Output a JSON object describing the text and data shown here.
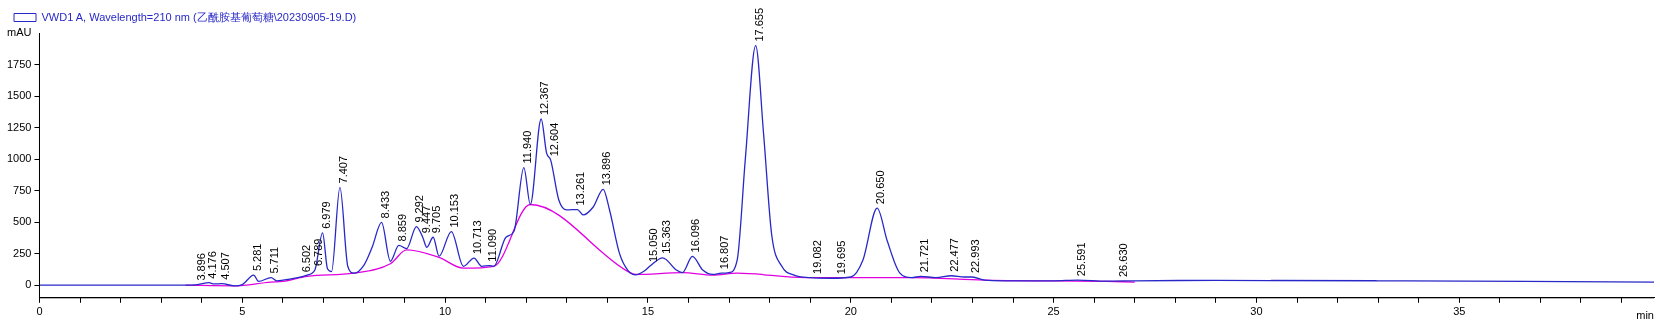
{
  "chart_data": {
    "type": "line",
    "xlabel": "min",
    "ylabel": "mAU",
    "legend": "top left",
    "grid": false,
    "marker": "none",
    "line_style": "solid",
    "xlim": [
      0,
      39.8
    ],
    "ylim": [
      -100,
      2000
    ],
    "xticks": [
      0,
      {
        "value": 1,
        "label": null
      },
      {
        "value": 2,
        "label": null
      },
      {
        "value": 3,
        "label": null
      },
      {
        "value": 4,
        "label": null
      },
      5,
      {
        "value": 6,
        "label": null
      },
      {
        "value": 7,
        "label": null
      },
      {
        "value": 8,
        "label": null
      },
      {
        "value": 9,
        "label": null
      },
      10,
      {
        "value": 11,
        "label": null
      },
      {
        "value": 12,
        "label": null
      },
      {
        "value": 13,
        "label": null
      },
      {
        "value": 14,
        "label": null
      },
      15,
      {
        "value": 16,
        "label": null
      },
      {
        "value": 17,
        "label": null
      },
      {
        "value": 18,
        "label": null
      },
      {
        "value": 19,
        "label": null
      },
      20,
      {
        "value": 21,
        "label": null
      },
      {
        "value": 22,
        "label": null
      },
      {
        "value": 23,
        "label": null
      },
      {
        "value": 24,
        "label": null
      },
      25,
      {
        "value": 26,
        "label": null
      },
      {
        "value": 27,
        "label": null
      },
      {
        "value": 28,
        "label": null
      },
      {
        "value": 29,
        "label": null
      },
      30,
      {
        "value": 31,
        "label": null
      },
      {
        "value": 32,
        "label": null
      },
      {
        "value": 33,
        "label": null
      },
      {
        "value": 34,
        "label": null
      },
      35,
      {
        "value": 36,
        "label": null
      },
      {
        "value": 37,
        "label": null
      },
      {
        "value": 38,
        "label": null
      },
      {
        "value": 39,
        "label": null
      }
    ],
    "yticks": [
      0,
      250,
      500,
      750,
      1000,
      1250,
      1500,
      1750
    ],
    "series": [
      {
        "name": "VWD1 A, Wavelength=210 nm (乙酰胺基葡萄糖\\20230905-19.D)",
        "color": "#2828c8",
        "x": [
          0,
          3.6,
          3.9,
          4.18,
          4.3,
          4.5,
          4.8,
          5.0,
          5.281,
          5.4,
          5.711,
          5.85,
          6.2,
          6.502,
          6.6,
          6.789,
          6.979,
          7.1,
          7.2,
          7.407,
          7.6,
          7.75,
          8.0,
          8.2,
          8.433,
          8.65,
          8.859,
          9.05,
          9.292,
          9.447,
          9.55,
          9.705,
          9.85,
          10.153,
          10.45,
          10.713,
          10.9,
          11.09,
          11.2,
          11.5,
          11.7,
          11.94,
          12.1,
          12.367,
          12.5,
          12.604,
          12.8,
          13.0,
          13.261,
          13.4,
          13.65,
          13.896,
          14.05,
          14.3,
          14.5,
          14.7,
          14.9,
          15.05,
          15.363,
          15.7,
          15.85,
          16.096,
          16.35,
          16.6,
          16.807,
          17.0,
          17.2,
          17.4,
          17.655,
          17.85,
          18.05,
          18.3,
          18.6,
          19.0,
          19.5,
          20.0,
          20.3,
          20.65,
          20.9,
          21.2,
          21.5,
          21.721,
          22.1,
          22.477,
          22.8,
          22.993,
          23.3,
          23.8,
          25.0,
          25.591,
          26.3,
          27.0,
          29.0,
          33.0,
          39.8
        ],
        "values": [
          0,
          0,
          5,
          20,
          10,
          12,
          -5,
          5,
          80,
          30,
          60,
          35,
          50,
          70,
          80,
          120,
          415,
          130,
          108,
          775,
          150,
          95,
          160,
          300,
          498,
          190,
          315,
          290,
          465,
          380,
          300,
          380,
          230,
          425,
          150,
          215,
          150,
          155,
          150,
          380,
          430,
          933,
          640,
          1318,
          1050,
          990,
          678,
          597,
          600,
          557,
          620,
          760,
          600,
          250,
          120,
          82,
          110,
          152,
          217,
          120,
          100,
          228,
          120,
          85,
          95,
          100,
          200,
          1000,
          1900,
          1200,
          400,
          150,
          80,
          60,
          55,
          65,
          200,
          611,
          350,
          100,
          60,
          70,
          60,
          75,
          65,
          65,
          40,
          35,
          35,
          40,
          32,
          35,
          38,
          35,
          25
        ]
      },
      {
        "color": "#e100e1",
        "x": [
          3.6,
          4.8,
          5.7,
          6.0,
          6.6,
          7.75,
          8.65,
          9.05,
          9.85,
          10.45,
          11.2,
          12.1,
          14.5,
          14.7,
          15.85,
          16.6,
          17.2,
          18.9,
          21.5,
          23.3,
          26.3,
          27.0
        ],
        "values": [
          0,
          -5,
          25,
          30,
          70,
          95,
          170,
          280,
          220,
          135,
          150,
          640,
          110,
          85,
          100,
          80,
          95,
          60,
          60,
          40,
          30,
          25
        ]
      }
    ],
    "annotations": [
      {
        "text": "3.896",
        "x": 3.896,
        "y": 5
      },
      {
        "text": "4.176",
        "x": 4.176,
        "y": 20
      },
      {
        "text": "4.507",
        "x": 4.507,
        "y": 12
      },
      {
        "text": "5.281",
        "x": 5.281,
        "y": 80
      },
      {
        "text": "5.711",
        "x": 5.711,
        "y": 60
      },
      {
        "text": "6.502",
        "x": 6.502,
        "y": 70
      },
      {
        "text": "6.789",
        "x": 6.789,
        "y": 120
      },
      {
        "text": "6.979",
        "x": 6.979,
        "y": 415
      },
      {
        "text": "7.407",
        "x": 7.407,
        "y": 775
      },
      {
        "text": "8.433",
        "x": 8.433,
        "y": 498
      },
      {
        "text": "8.859",
        "x": 8.859,
        "y": 315
      },
      {
        "text": "9.292",
        "x": 9.292,
        "y": 465
      },
      {
        "text": "9.447",
        "x": 9.447,
        "y": 380
      },
      {
        "text": "9.705",
        "x": 9.705,
        "y": 380
      },
      {
        "text": "10.153",
        "x": 10.153,
        "y": 425
      },
      {
        "text": "10.713",
        "x": 10.713,
        "y": 215
      },
      {
        "text": "11.090",
        "x": 11.09,
        "y": 155
      },
      {
        "text": "11.940",
        "x": 11.94,
        "y": 933
      },
      {
        "text": "12.367",
        "x": 12.367,
        "y": 1318
      },
      {
        "text": "12.604",
        "x": 12.604,
        "y": 990
      },
      {
        "text": "13.261",
        "x": 13.261,
        "y": 600
      },
      {
        "text": "13.896",
        "x": 13.896,
        "y": 760
      },
      {
        "text": "15.050",
        "x": 15.05,
        "y": 152
      },
      {
        "text": "15.363",
        "x": 15.363,
        "y": 217
      },
      {
        "text": "16.096",
        "x": 16.096,
        "y": 228
      },
      {
        "text": "16.807",
        "x": 16.807,
        "y": 95
      },
      {
        "text": "17.655",
        "x": 17.655,
        "y": 1900
      },
      {
        "text": "19.082",
        "x": 19.082,
        "y": 58
      },
      {
        "text": "19.695",
        "x": 19.695,
        "y": 55
      },
      {
        "text": "20.650",
        "x": 20.65,
        "y": 611
      },
      {
        "text": "21.721",
        "x": 21.721,
        "y": 70
      },
      {
        "text": "22.477",
        "x": 22.477,
        "y": 75
      },
      {
        "text": "22.993",
        "x": 22.993,
        "y": 65
      },
      {
        "text": "25.591",
        "x": 25.591,
        "y": 40
      },
      {
        "text": "26.630",
        "x": 26.63,
        "y": 33
      }
    ]
  }
}
